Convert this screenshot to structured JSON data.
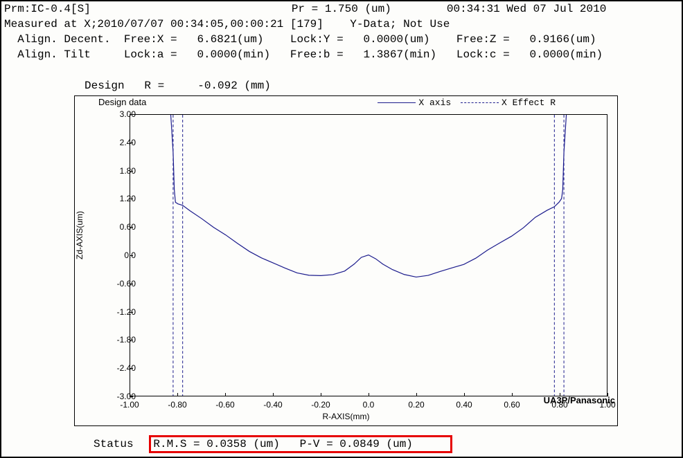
{
  "header": {
    "line1_left": "Prm:IC-0.4[S]",
    "line1_mid": "Pr = 1.750 (um)",
    "line1_right": "00:34:31 Wed 07 Jul 2010",
    "line2": "Measured at X;2010/07/07 00:34:05,00:00:21 [179]    Y-Data; Not Use",
    "line3": "  Align. Decent.  Free:X =   6.6821(um)    Lock:Y =   0.0000(um)    Free:Z =   0.9166(um)",
    "line4": "  Align. Tilt     Lock:a =   0.0000(min)   Free:b =   1.3867(min)   Lock:c =   0.0000(min)"
  },
  "design_r": "Design   R =     -0.092 (mm)",
  "chart": {
    "title": "Design data",
    "legend_xaxis": "X axis",
    "legend_effect": "X Effect R",
    "y_label": "Zd-AXIS(um)",
    "x_label": "R-AXIS(mm)",
    "xlim": [
      -1.0,
      1.0
    ],
    "ylim": [
      -3.0,
      3.0
    ],
    "xticks": [
      -1.0,
      -0.8,
      -0.6,
      -0.4,
      -0.2,
      0.0,
      0.2,
      0.4,
      0.6,
      0.8,
      1.0
    ],
    "yticks": [
      -3.0,
      -2.4,
      -1.8,
      -1.2,
      -0.6,
      0.0,
      0.6,
      1.2,
      1.8,
      2.4,
      3.0
    ],
    "xtick_labels": [
      "-1.00",
      "-0.80",
      "-0.60",
      "-0.40",
      "-0.20",
      "0.0",
      "0.20",
      "0.40",
      "0.60",
      "0.80",
      "1.00"
    ],
    "ytick_labels": [
      "-3.00",
      "-2.40",
      "-1.80",
      "-1.20",
      "-0.60",
      "0.0",
      "0.60",
      "1.20",
      "1.80",
      "2.40",
      "3.00"
    ],
    "effect_r_lines": [
      -0.82,
      -0.78,
      0.78,
      0.82
    ],
    "curve_color": "#1a1a8c",
    "curve_points": [
      [
        -0.83,
        3.0
      ],
      [
        -0.82,
        2.2
      ],
      [
        -0.815,
        1.4
      ],
      [
        -0.81,
        1.15
      ],
      [
        -0.8,
        1.1
      ],
      [
        -0.78,
        1.05
      ],
      [
        -0.75,
        0.95
      ],
      [
        -0.7,
        0.8
      ],
      [
        -0.65,
        0.6
      ],
      [
        -0.6,
        0.42
      ],
      [
        -0.55,
        0.25
      ],
      [
        -0.5,
        0.1
      ],
      [
        -0.45,
        -0.05
      ],
      [
        -0.4,
        -0.18
      ],
      [
        -0.35,
        -0.28
      ],
      [
        -0.3,
        -0.36
      ],
      [
        -0.25,
        -0.42
      ],
      [
        -0.2,
        -0.45
      ],
      [
        -0.15,
        -0.42
      ],
      [
        -0.1,
        -0.32
      ],
      [
        -0.06,
        -0.18
      ],
      [
        -0.03,
        -0.06
      ],
      [
        0.0,
        0.0
      ],
      [
        0.03,
        -0.06
      ],
      [
        0.06,
        -0.18
      ],
      [
        0.1,
        -0.32
      ],
      [
        0.15,
        -0.42
      ],
      [
        0.2,
        -0.45
      ],
      [
        0.25,
        -0.42
      ],
      [
        0.3,
        -0.36
      ],
      [
        0.35,
        -0.28
      ],
      [
        0.4,
        -0.18
      ],
      [
        0.45,
        -0.05
      ],
      [
        0.5,
        0.1
      ],
      [
        0.55,
        0.25
      ],
      [
        0.6,
        0.42
      ],
      [
        0.65,
        0.6
      ],
      [
        0.7,
        0.8
      ],
      [
        0.75,
        0.95
      ],
      [
        0.78,
        1.05
      ],
      [
        0.8,
        1.15
      ],
      [
        0.81,
        1.2
      ],
      [
        0.815,
        1.4
      ],
      [
        0.82,
        2.2
      ],
      [
        0.83,
        3.0
      ]
    ]
  },
  "status": {
    "label": "Status",
    "rms": "R.M.S = 0.0358 (um)",
    "pv": "P-V = 0.0849 (um)"
  },
  "branding": "UA3P/Panasonic"
}
